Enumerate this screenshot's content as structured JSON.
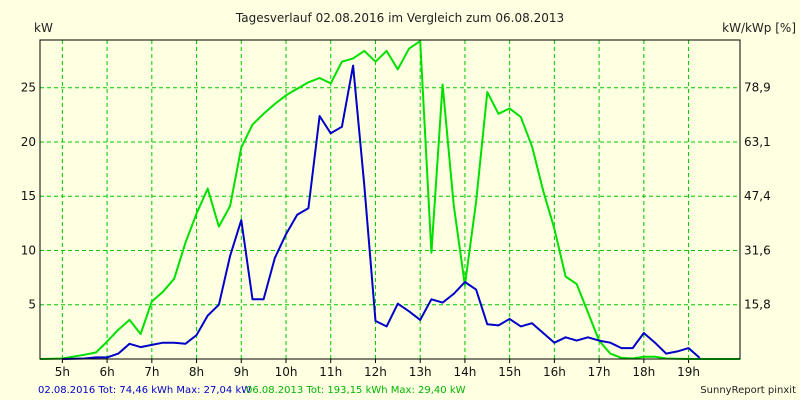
{
  "chart_data": {
    "type": "line",
    "title": "Tagesverlauf 02.08.2016 im Vergleich zum 06.08.2013",
    "ylabel_left": "kW",
    "ylabel_right": "kW/kWp [%]",
    "xlim": [
      4.5,
      20.15
    ],
    "ylim": [
      0,
      29.4
    ],
    "x_ticks": [
      5,
      6,
      7,
      8,
      9,
      10,
      11,
      12,
      13,
      14,
      15,
      16,
      17,
      18,
      19
    ],
    "x_tick_labels": [
      "5h",
      "6h",
      "7h",
      "8h",
      "9h",
      "10h",
      "11h",
      "12h",
      "13h",
      "14h",
      "15h",
      "16h",
      "17h",
      "18h",
      "19h"
    ],
    "y_ticks": [
      5,
      10,
      15,
      20,
      25
    ],
    "y_tick_labels": [
      "5",
      "10",
      "15",
      "20",
      "25"
    ],
    "y2_ticks": [
      5,
      10,
      15,
      20,
      25
    ],
    "y2_tick_labels": [
      "15,8",
      "31,6",
      "47,4",
      "63,1",
      "78,9"
    ],
    "grid": true,
    "colors": {
      "background": "#ffffe1",
      "grid": "#00c800",
      "frame": "#000000"
    },
    "series": [
      {
        "name": "02.08.2016 Tot: 74,46 kWh Max: 27,04 kW",
        "color": "#0000c8",
        "x": [
          5.0,
          5.5,
          5.75,
          6.0,
          6.25,
          6.5,
          6.75,
          7.0,
          7.25,
          7.5,
          7.75,
          8.0,
          8.25,
          8.5,
          8.75,
          9.0,
          9.25,
          9.5,
          9.75,
          10.0,
          10.25,
          10.5,
          10.75,
          11.0,
          11.25,
          11.5,
          11.75,
          12.0,
          12.25,
          12.5,
          12.75,
          13.0,
          13.25,
          13.5,
          13.75,
          14.0,
          14.25,
          14.5,
          14.75,
          15.0,
          15.25,
          15.5,
          15.75,
          16.0,
          16.25,
          16.5,
          16.75,
          17.0,
          17.25,
          17.5,
          17.75,
          18.0,
          18.25,
          18.5,
          18.75,
          19.0,
          19.25
        ],
        "y": [
          0,
          0.05,
          0.15,
          0.15,
          0.5,
          1.4,
          1.1,
          1.3,
          1.5,
          1.5,
          1.4,
          2.2,
          4.0,
          5.0,
          9.5,
          12.8,
          5.5,
          5.5,
          9.3,
          11.5,
          13.3,
          13.9,
          22.4,
          20.8,
          21.4,
          27.04,
          16.0,
          3.5,
          3.0,
          5.1,
          4.4,
          3.6,
          5.5,
          5.2,
          6.0,
          7.1,
          6.4,
          3.2,
          3.1,
          3.7,
          3.0,
          3.3,
          2.4,
          1.5,
          2.0,
          1.7,
          2.0,
          1.7,
          1.5,
          1.0,
          1.0,
          2.4,
          1.5,
          0.5,
          0.7,
          1.0,
          0.1
        ]
      },
      {
        "name": "06.08.2013 Tot: 193,15 kWh Max: 29,40 kW",
        "color": "#00e000",
        "x": [
          4.5,
          5.0,
          5.5,
          5.75,
          6.0,
          6.25,
          6.5,
          6.75,
          7.0,
          7.25,
          7.5,
          7.75,
          8.0,
          8.25,
          8.5,
          8.75,
          9.0,
          9.25,
          9.5,
          9.75,
          10.0,
          10.25,
          10.5,
          10.75,
          11.0,
          11.25,
          11.5,
          11.75,
          12.0,
          12.25,
          12.5,
          12.75,
          13.0,
          13.25,
          13.5,
          13.75,
          14.0,
          14.25,
          14.5,
          14.75,
          15.0,
          15.25,
          15.5,
          15.75,
          16.0,
          16.25,
          16.5,
          16.75,
          17.0,
          17.25,
          17.5,
          17.75,
          18.0,
          18.25,
          18.5,
          19.0,
          19.5,
          20.15
        ],
        "y": [
          0,
          0.05,
          0.4,
          0.6,
          1.6,
          2.7,
          3.6,
          2.3,
          5.3,
          6.2,
          7.4,
          10.7,
          13.4,
          15.7,
          12.2,
          14.1,
          19.5,
          21.6,
          22.6,
          23.5,
          24.3,
          24.9,
          25.5,
          25.9,
          25.4,
          27.4,
          27.7,
          28.4,
          27.4,
          28.4,
          26.7,
          28.6,
          29.3,
          9.8,
          25.3,
          14.2,
          6.8,
          14.5,
          24.6,
          22.6,
          23.1,
          22.3,
          19.6,
          15.5,
          12.0,
          7.6,
          6.9,
          4.3,
          1.7,
          0.5,
          0.1,
          0.05,
          0.2,
          0.2,
          0.05,
          0,
          0,
          0
        ]
      }
    ],
    "footer": {
      "series1_label": "02.08.2016 Tot: 74,46 kWh Max: 27,04 kW",
      "series2_label": "06.08.2013 Tot: 193,15 kWh Max: 29,40 kW",
      "brand": "SunnyReport pinxit"
    }
  }
}
